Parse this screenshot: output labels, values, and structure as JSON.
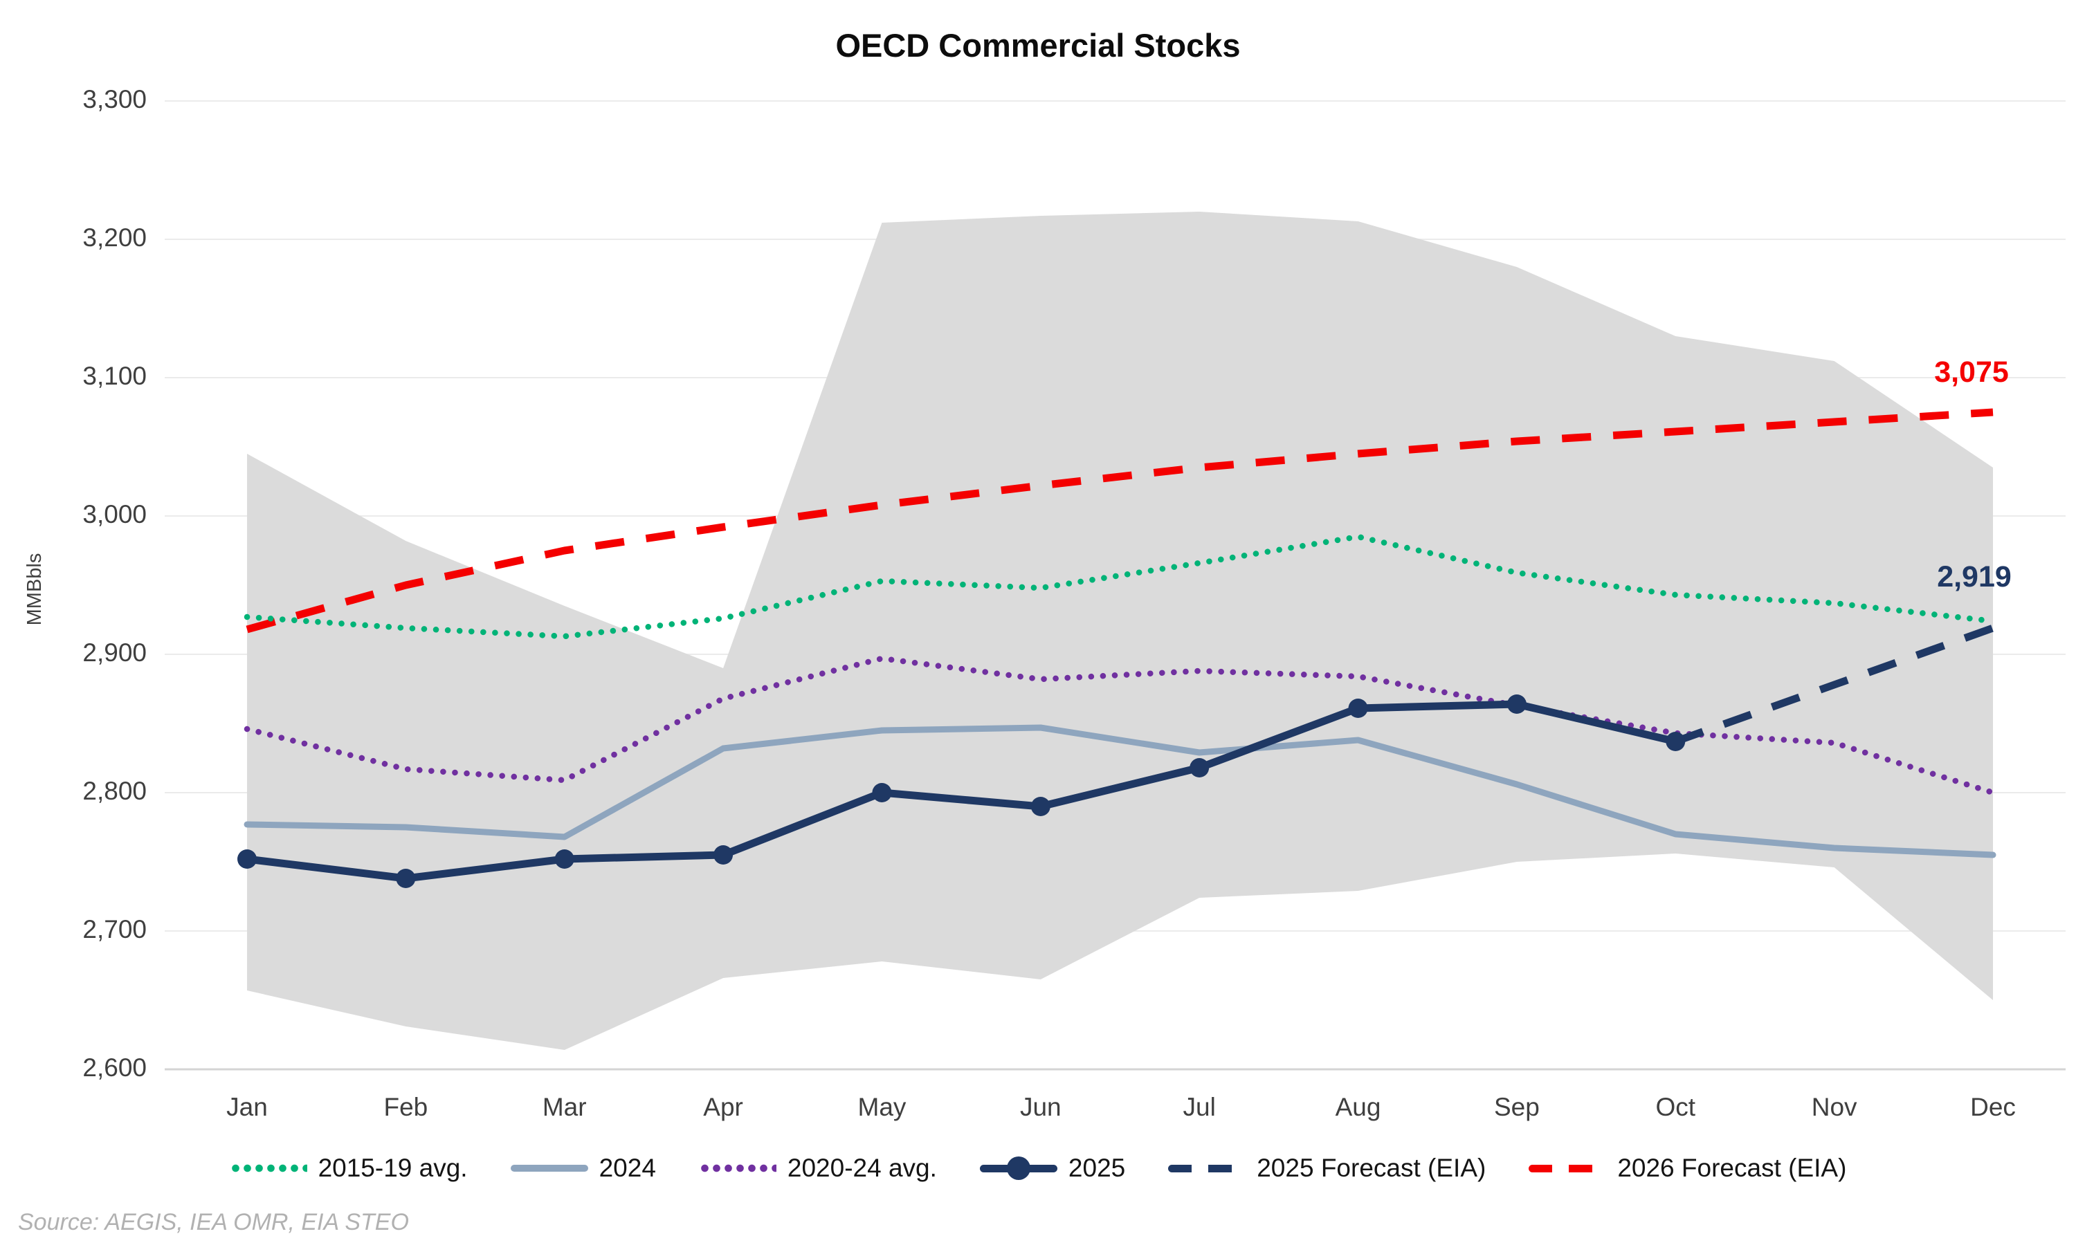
{
  "title": "OECD Commercial Stocks",
  "source": "Source: AEGIS, IEA OMR, EIA STEO",
  "y_axis": {
    "label": "MMBbls",
    "ticks": [
      {
        "label": "3,300",
        "value": 3300
      },
      {
        "label": "3,200",
        "value": 3200
      },
      {
        "label": "3,100",
        "value": 3100
      },
      {
        "label": "3,000",
        "value": 3000
      },
      {
        "label": "2,900",
        "value": 2900
      },
      {
        "label": "2,800",
        "value": 2800
      },
      {
        "label": "2,700",
        "value": 2700
      },
      {
        "label": "2,600",
        "value": 2600
      }
    ]
  },
  "x_axis": {
    "months": [
      "Jan",
      "Feb",
      "Mar",
      "Apr",
      "May",
      "Jun",
      "Jul",
      "Aug",
      "Sep",
      "Oct",
      "Nov",
      "Dec"
    ]
  },
  "annotations": [
    {
      "text": "3,075",
      "color": "#f40000",
      "refers_to": "2026 Forecast (EIA) Dec value"
    },
    {
      "text": "2,919",
      "color": "#1f3864",
      "refers_to": "2025 Forecast (EIA) Dec value"
    }
  ],
  "colors": {
    "band": "#dbdbdb",
    "grid": "#ebebeb",
    "axis_line": "#d4d4d4",
    "green": "#00b377",
    "slate": "#8ea5be",
    "purple": "#7030a0",
    "navy": "#1f3864",
    "red": "#f40000"
  },
  "chart_data": {
    "type": "line",
    "title": "OECD Commercial Stocks",
    "ylabel": "MMBbls",
    "ylim": [
      2600,
      3300
    ],
    "grid": true,
    "legend_position": "bottom",
    "categories": [
      "Jan",
      "Feb",
      "Mar",
      "Apr",
      "May",
      "Jun",
      "Jul",
      "Aug",
      "Sep",
      "Oct",
      "Nov",
      "Dec"
    ],
    "band": {
      "name": "historical min-max range",
      "color": "#dbdbdb",
      "upper": [
        3045,
        2982,
        2935,
        2890,
        3212,
        3217,
        3220,
        3213,
        3180,
        3130,
        3112,
        3035
      ],
      "lower": [
        2657,
        2631,
        2614,
        2666,
        2678,
        2665,
        2724,
        2729,
        2750,
        2756,
        2746,
        2650
      ]
    },
    "series": [
      {
        "name": "2015-19 avg.",
        "style": "dotted",
        "color": "#00b377",
        "values": [
          2927,
          2919,
          2913,
          2926,
          2953,
          2948,
          2966,
          2985,
          2959,
          2943,
          2937,
          2924
        ]
      },
      {
        "name": "2024",
        "style": "solid",
        "color": "#8ea5be",
        "values": [
          2777,
          2775,
          2768,
          2832,
          2845,
          2847,
          2829,
          2838,
          2806,
          2770,
          2760,
          2755
        ]
      },
      {
        "name": "2020-24 avg.",
        "style": "dotted",
        "color": "#7030a0",
        "values": [
          2846,
          2817,
          2809,
          2868,
          2897,
          2882,
          2888,
          2884,
          2863,
          2843,
          2836,
          2800
        ]
      },
      {
        "name": "2025",
        "style": "solid-marker",
        "color": "#1f3864",
        "values": [
          2752,
          2738,
          2752,
          2755,
          2800,
          2790,
          2818,
          2861,
          2864,
          2837,
          null,
          null
        ]
      },
      {
        "name": "2025 Forecast (EIA)",
        "style": "dashed",
        "color": "#1f3864",
        "values": [
          null,
          null,
          null,
          null,
          null,
          null,
          null,
          null,
          null,
          2837,
          2878,
          2919
        ]
      },
      {
        "name": "2026 Forecast (EIA)",
        "style": "dashed",
        "color": "#f40000",
        "values": [
          2918,
          2950,
          2975,
          2992,
          3008,
          3022,
          3035,
          3045,
          3054,
          3061,
          3068,
          3075
        ]
      }
    ]
  }
}
